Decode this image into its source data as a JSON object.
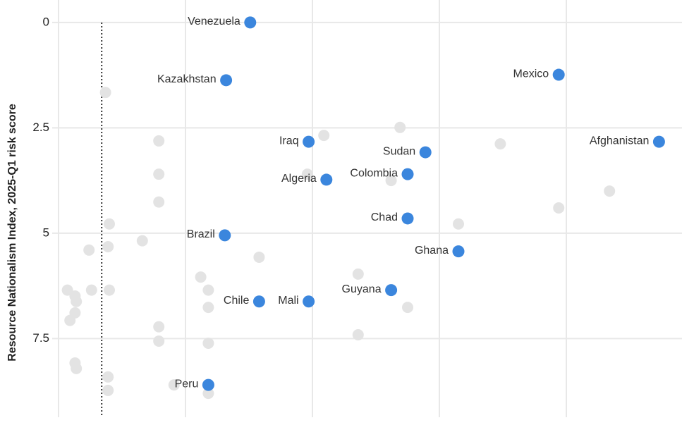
{
  "chart_data": {
    "type": "scatter",
    "y_axis_label": "Resource Nationalism Index, 2025-Q1 risk score",
    "ylim": [
      -0.5,
      9.3
    ],
    "y_inverted": true,
    "yticks": [
      0,
      2.5,
      5,
      7.5
    ],
    "xlim": [
      -0.05,
      4.9
    ],
    "x_gridlines": [
      0,
      1,
      2,
      3,
      4
    ],
    "x_reference_line": 0.34,
    "grid": true,
    "series": [
      {
        "color": "#e3e3e3",
        "x": [
          0.37,
          0.79,
          2.09,
          2.69,
          3.48,
          0.79,
          1.96,
          2.62,
          4.34,
          0.79,
          3.94,
          0.4,
          3.15,
          0.66,
          0.39,
          0.24,
          1.58,
          1.12,
          2.36,
          0.07,
          0.26,
          0.4,
          1.18,
          0.13,
          0.14,
          1.18,
          2.75,
          0.13,
          0.09,
          0.79,
          2.36,
          0.79,
          1.18,
          0.13,
          0.14,
          0.39,
          0.91,
          0.39,
          1.18
        ],
        "values": [
          1.66,
          2.81,
          2.68,
          2.49,
          2.88,
          3.6,
          3.6,
          3.75,
          4.0,
          4.26,
          4.4,
          4.78,
          4.78,
          5.18,
          5.32,
          5.4,
          5.57,
          6.04,
          5.97,
          6.35,
          6.35,
          6.35,
          6.35,
          6.49,
          6.62,
          6.76,
          6.76,
          6.89,
          7.07,
          7.22,
          7.41,
          7.56,
          7.61,
          8.08,
          8.21,
          8.41,
          8.6,
          8.73,
          8.8
        ]
      },
      {
        "color": "#3b86dd",
        "x": [
          1.51,
          1.32,
          3.94,
          1.97,
          4.73,
          2.89,
          2.75,
          2.11,
          2.75,
          1.31,
          3.15,
          2.62,
          1.58,
          1.97,
          1.18
        ],
        "values": [
          0,
          1.37,
          1.24,
          2.83,
          2.83,
          3.08,
          3.6,
          3.73,
          4.65,
          5.05,
          5.43,
          6.35,
          6.62,
          6.62,
          8.6
        ],
        "point_labels": [
          "Venezuela",
          "Kazakhstan",
          "Mexico",
          "Iraq",
          "Afghanistan",
          "Sudan",
          "Colombia",
          "Algeria",
          "Chad",
          "Brazil",
          "Ghana",
          "Guyana",
          "Chile",
          "Mali",
          "Peru"
        ]
      }
    ]
  }
}
